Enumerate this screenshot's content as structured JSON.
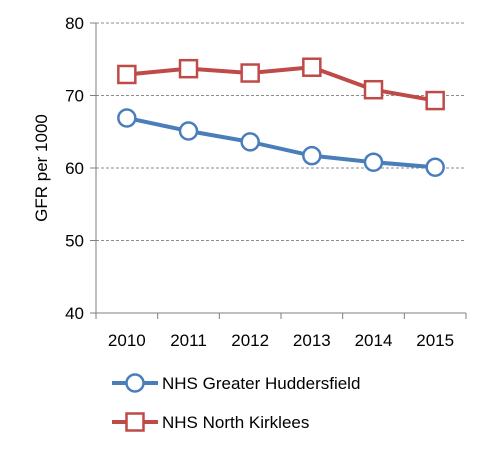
{
  "chart_data": {
    "type": "line",
    "title": "",
    "xlabel": "",
    "ylabel": "GFR per 1000",
    "categories": [
      "2010",
      "2011",
      "2012",
      "2013",
      "2014",
      "2015"
    ],
    "ylim": [
      40,
      80
    ],
    "yticks": [
      40,
      50,
      60,
      70,
      80
    ],
    "grid": "horizontal dashed",
    "legend_placement": "bottom",
    "series": [
      {
        "name": "NHS Greater Huddersfield",
        "marker": "circle",
        "color": "#4a7ebb",
        "values": [
          66.9,
          65.1,
          63.6,
          61.7,
          60.8,
          60.1
        ]
      },
      {
        "name": "NHS North Kirklees",
        "marker": "square",
        "color": "#be4b48",
        "values": [
          72.9,
          73.7,
          73.1,
          73.9,
          70.8,
          69.3
        ]
      }
    ]
  }
}
